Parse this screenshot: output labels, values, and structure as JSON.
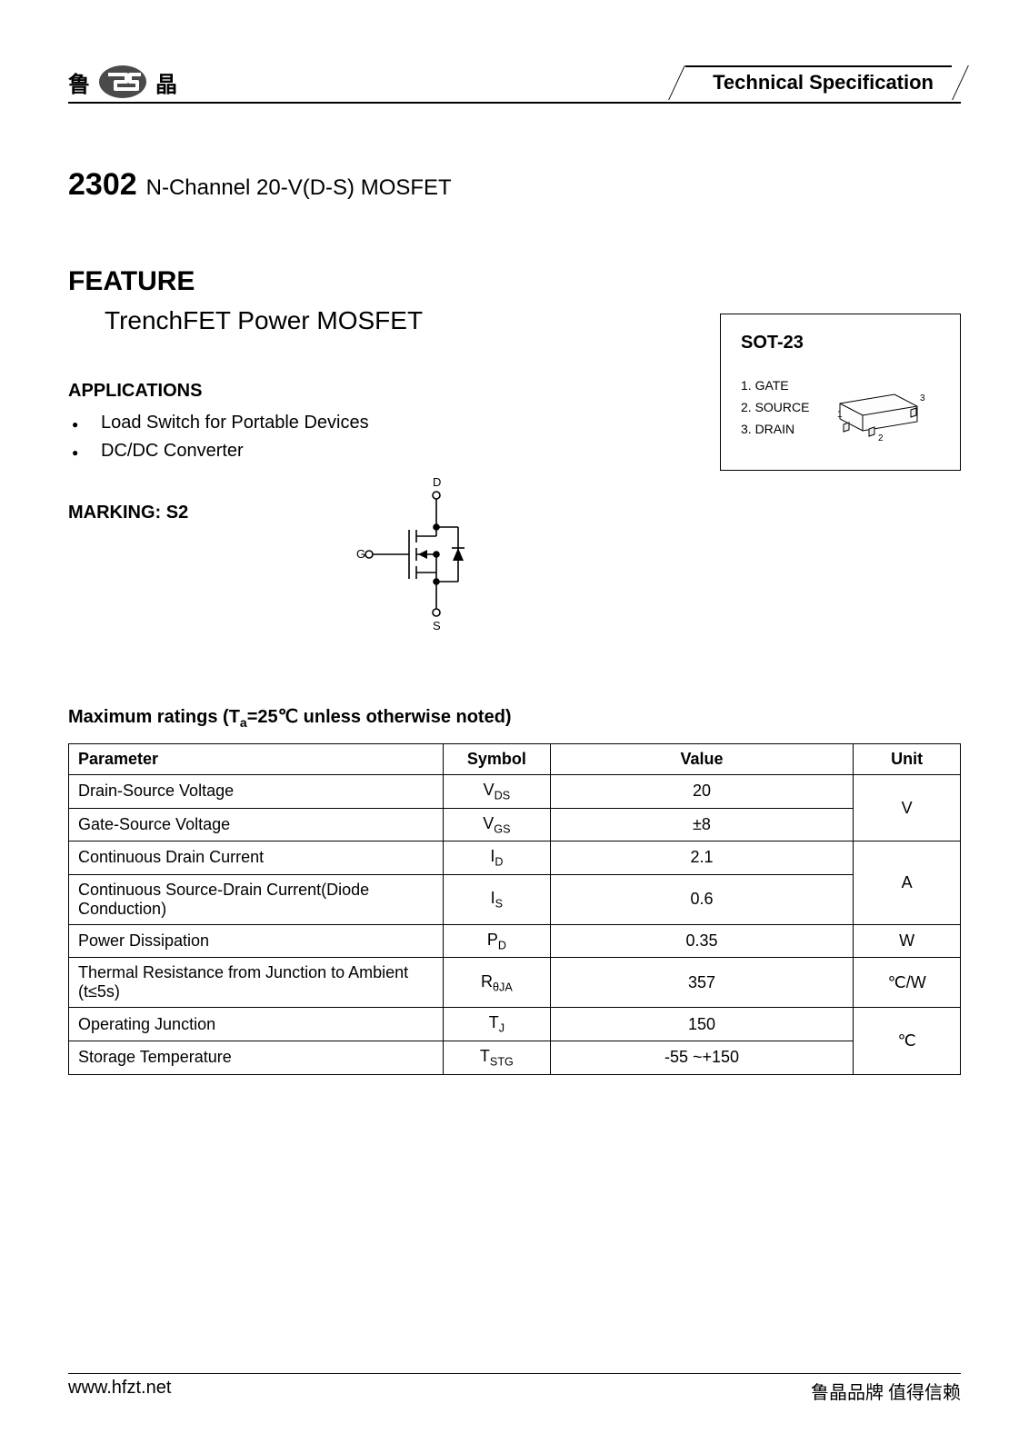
{
  "header": {
    "logo_left_char": "鲁",
    "logo_right_char": "晶",
    "spec_label": "Technical Specification"
  },
  "title": {
    "part_number": "2302",
    "description": "N-Channel 20-V(D-S) MOSFET"
  },
  "feature": {
    "heading": "FEATURE",
    "text": "TrenchFET Power MOSFET"
  },
  "applications": {
    "heading": "APPLICATIONS",
    "items": [
      "Load Switch for Portable Devices",
      "DC/DC Converter"
    ]
  },
  "marking": {
    "label": "MARKING: S2"
  },
  "schematic": {
    "type": "mosfet-n-channel",
    "pins": {
      "drain": "D",
      "gate": "G",
      "source": "S"
    }
  },
  "package": {
    "name": "SOT-23",
    "pin_labels": [
      "1. GATE",
      "2. SOURCE",
      "3. DRAIN"
    ],
    "pin_numbers": [
      "1",
      "2",
      "3"
    ]
  },
  "ratings": {
    "heading_prefix": "Maximum ratings (T",
    "heading_sub": "a",
    "heading_suffix": "=25℃ unless otherwise noted)",
    "columns": [
      "Parameter",
      "Symbol",
      "Value",
      "Unit"
    ],
    "rows": [
      {
        "param": "Drain-Source Voltage",
        "sym": "V",
        "sym_sub": "DS",
        "value": "20",
        "unit": "V",
        "unit_rowspan": 2
      },
      {
        "param": "Gate-Source Voltage",
        "sym": "V",
        "sym_sub": "GS",
        "value": "±8"
      },
      {
        "param": "Continuous Drain Current",
        "sym": "I",
        "sym_sub": "D",
        "value": "2.1",
        "unit": "A",
        "unit_rowspan": 2
      },
      {
        "param": "Continuous Source-Drain Current(Diode Conduction)",
        "sym": "I",
        "sym_sub": "S",
        "value": "0.6"
      },
      {
        "param": "Power Dissipation",
        "sym": "P",
        "sym_sub": "D",
        "value": "0.35",
        "unit": "W",
        "unit_rowspan": 1
      },
      {
        "param": "Thermal Resistance from Junction to Ambient (t≤5s)",
        "sym": "R",
        "sym_sub": "θJA",
        "value": "357",
        "unit": "℃/W",
        "unit_rowspan": 1
      },
      {
        "param": "Operating Junction",
        "sym": "T",
        "sym_sub": "J",
        "value": "150",
        "unit": "℃",
        "unit_rowspan": 2
      },
      {
        "param": "Storage Temperature",
        "sym": "T",
        "sym_sub": "STG",
        "value": "-55 ~+150"
      }
    ]
  },
  "footer": {
    "url": "www.hfzt.net",
    "slogan": "鲁晶品牌 值得信赖"
  },
  "colors": {
    "text": "#000000",
    "background": "#ffffff",
    "border": "#000000",
    "logo_bg": "#4a4a4a"
  }
}
